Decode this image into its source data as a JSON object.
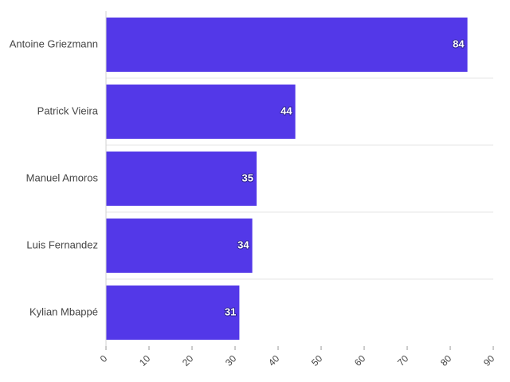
{
  "chart_data": {
    "type": "bar",
    "orientation": "horizontal",
    "categories": [
      "Antoine Griezmann",
      "Patrick Vieira",
      "Manuel Amoros",
      "Luis Fernandez",
      "Kylian Mbappé"
    ],
    "values": [
      84,
      44,
      35,
      34,
      31
    ],
    "xlim": [
      0,
      90
    ],
    "xticks": [
      "0",
      "10",
      "20",
      "30",
      "40",
      "50",
      "60",
      "70",
      "80",
      "90"
    ],
    "grid": "horizontal lines between bars",
    "data_labels": true,
    "bar_color": "#5338e8",
    "title": "",
    "xlabel": "",
    "ylabel": ""
  }
}
